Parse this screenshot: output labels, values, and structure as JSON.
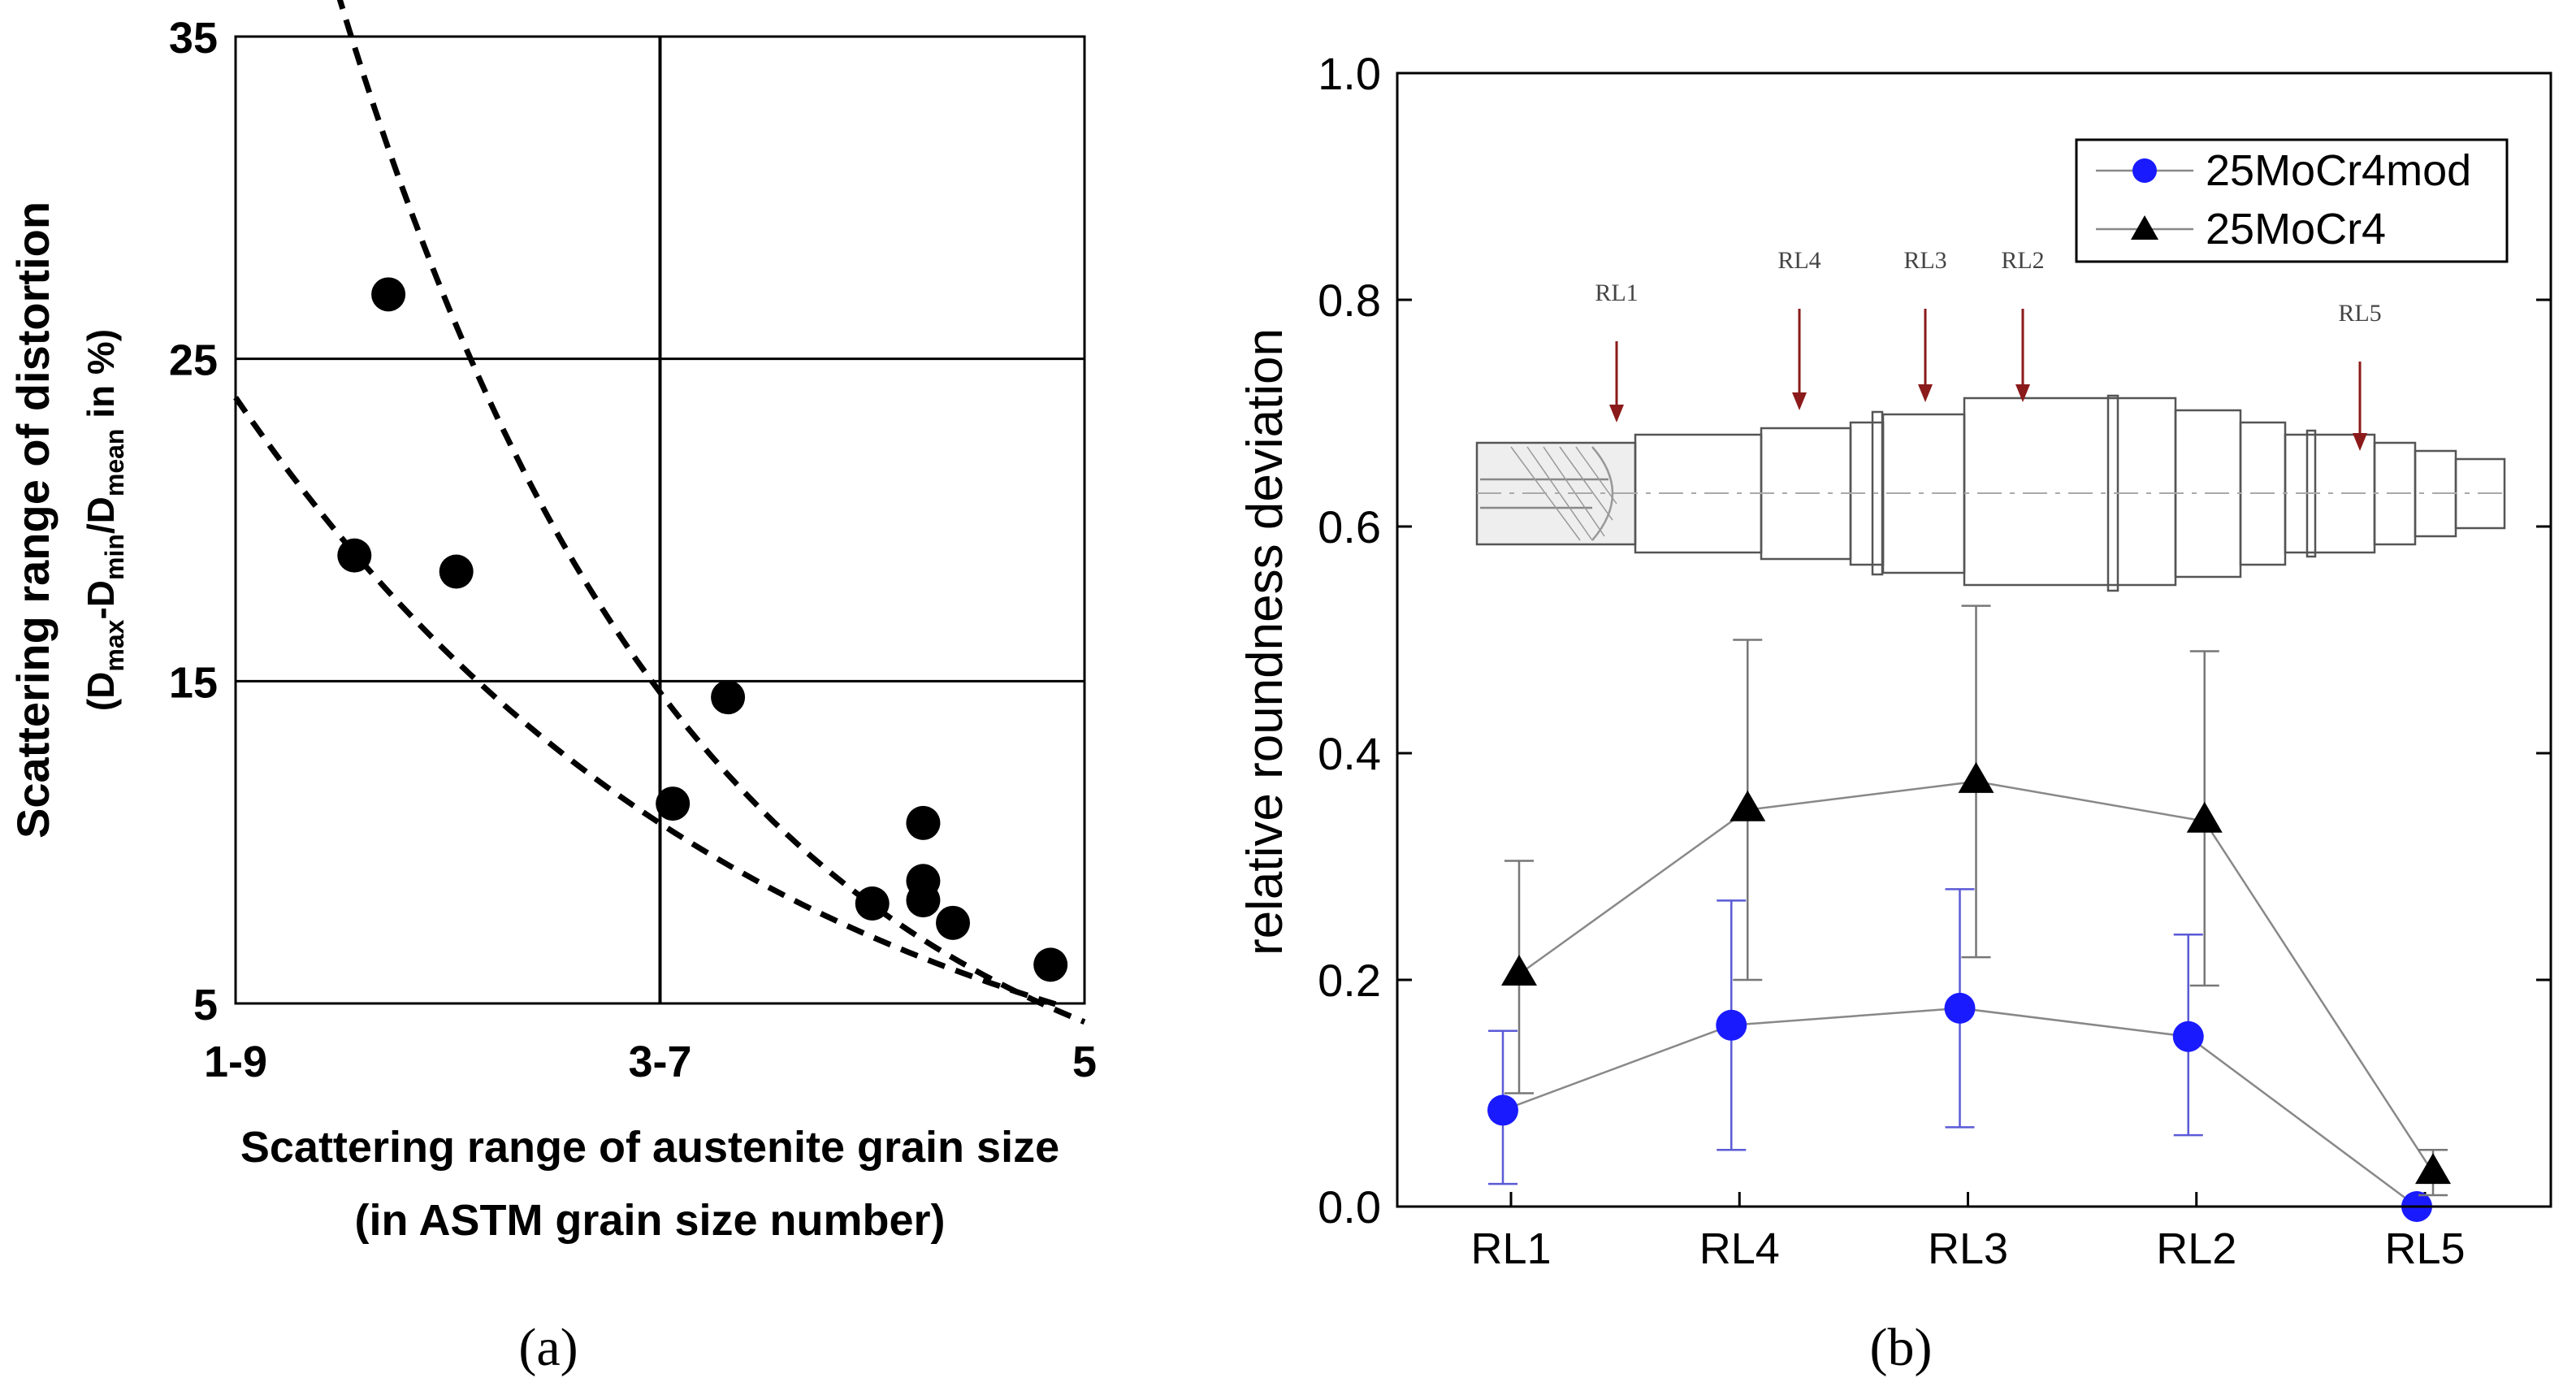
{
  "chart_data": [
    {
      "type": "scatter",
      "panel_label": "(a)",
      "ylabel_line1": "Scattering range of distortion",
      "ylabel_line2": {
        "open": "(D",
        "sub1": "max",
        "mid1": "-D",
        "sub2": "min",
        "mid2": "/D",
        "sub3": "mean",
        "close": " in %)"
      },
      "xlabel_line1": "Scattering range of austenite grain size",
      "xlabel_line2": "(in ASTM grain size number)",
      "xlim": [
        0,
        10
      ],
      "ylim": [
        5,
        35
      ],
      "x_ticks": [
        {
          "x": 0,
          "label": "1-9"
        },
        {
          "x": 5,
          "label": "3-7"
        },
        {
          "x": 10,
          "label": "5"
        }
      ],
      "y_ticks": [
        {
          "y": 5,
          "label": "5"
        },
        {
          "y": 15,
          "label": "15"
        },
        {
          "y": 25,
          "label": "25"
        },
        {
          "y": 35,
          "label": "35"
        }
      ],
      "grid_y": [
        15,
        25
      ],
      "grid_x": [
        5
      ],
      "points": [
        {
          "x": 1.8,
          "y": 27.0
        },
        {
          "x": 1.4,
          "y": 18.9
        },
        {
          "x": 2.6,
          "y": 18.4
        },
        {
          "x": 5.8,
          "y": 14.5
        },
        {
          "x": 5.15,
          "y": 11.2
        },
        {
          "x": 8.1,
          "y": 10.6
        },
        {
          "x": 8.1,
          "y": 8.8
        },
        {
          "x": 8.1,
          "y": 8.2
        },
        {
          "x": 7.5,
          "y": 8.1
        },
        {
          "x": 8.45,
          "y": 7.5
        },
        {
          "x": 9.6,
          "y": 6.2
        }
      ],
      "fits": [
        {
          "name": "upper",
          "x0": 1.2,
          "x1": 10.0,
          "a": 48.5,
          "b": 0.2394
        },
        {
          "name": "lower",
          "x0": 0.0,
          "x1": 9.7,
          "a": 23.8,
          "b": 0.162
        }
      ]
    },
    {
      "type": "line",
      "panel_label": "(b)",
      "ylabel": "relative roundness deviation",
      "categories": [
        "RL1",
        "RL4",
        "RL3",
        "RL2",
        "RL5"
      ],
      "ylim": [
        0.0,
        1.0
      ],
      "y_ticks": [
        "0.0",
        "0.2",
        "0.4",
        "0.6",
        "0.8",
        "1.0"
      ],
      "legend_position": "top-right",
      "series": [
        {
          "name": "25MoCr4mod",
          "marker": "circle",
          "color": "#1a1aff",
          "values": [
            0.085,
            0.16,
            0.175,
            0.15,
            0.0
          ],
          "err_low": [
            0.02,
            0.05,
            0.07,
            0.063,
            0.0
          ],
          "err_high": [
            0.155,
            0.27,
            0.28,
            0.24,
            0.0
          ]
        },
        {
          "name": "25MoCr4",
          "marker": "triangle",
          "color": "#000000",
          "values": [
            0.205,
            0.35,
            0.375,
            0.34,
            0.03
          ],
          "err_low": [
            0.1,
            0.2,
            0.22,
            0.195,
            0.01
          ],
          "err_high": [
            0.305,
            0.5,
            0.53,
            0.49,
            0.05
          ]
        }
      ],
      "inset_labels": [
        "RL1",
        "RL4",
        "RL3",
        "RL2",
        "RL5"
      ]
    }
  ]
}
